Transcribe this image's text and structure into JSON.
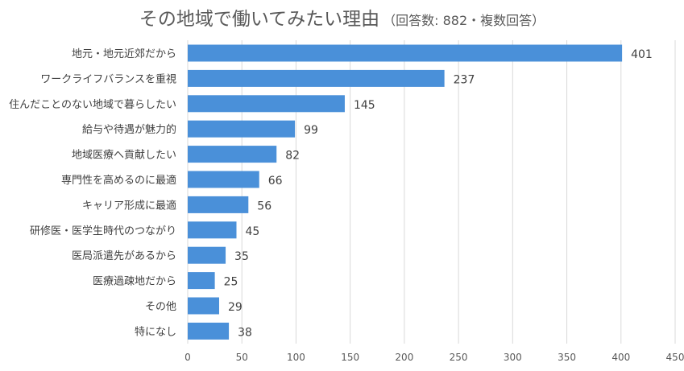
{
  "title": "その地域で働いてみたい理由",
  "subtitle": "（回答数: 882・複数回答）",
  "colors": {
    "bar": "#4a90d9",
    "grid": "#d9d9d9",
    "text": "#404040"
  },
  "chart_data": {
    "type": "bar",
    "orientation": "horizontal",
    "title": "その地域で働いてみたい理由",
    "subtitle": "（回答数: 882・複数回答）",
    "categories": [
      "地元・地元近郊だから",
      "ワークライフバランスを重視",
      "住んだことのない地域で暮らしたい",
      "給与や待遇が魅力的",
      "地域医療へ貢献したい",
      "専門性を高めるのに最適",
      "キャリア形成に最適",
      "研修医・医学生時代のつながり",
      "医局派遣先があるから",
      "医療過疎地だから",
      "その他",
      "特になし"
    ],
    "values": [
      401,
      237,
      145,
      99,
      82,
      66,
      56,
      45,
      35,
      25,
      29,
      38
    ],
    "xlim": [
      0,
      450
    ],
    "xticks": [
      0,
      50,
      100,
      150,
      200,
      250,
      300,
      350,
      400,
      450
    ],
    "xlabel": "",
    "ylabel": "",
    "grid": true,
    "data_labels": true
  }
}
